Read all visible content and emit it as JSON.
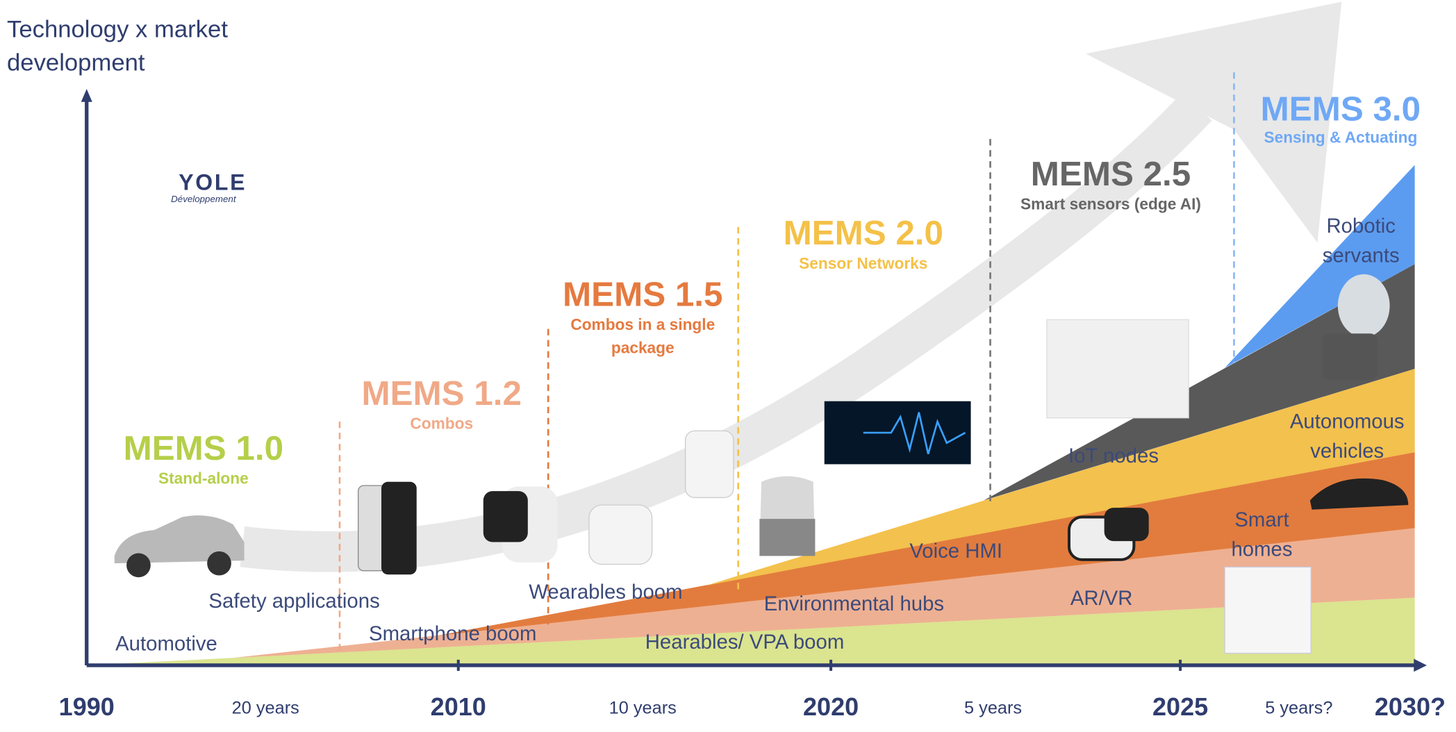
{
  "y_axis_label": [
    "Technology x market",
    "development"
  ],
  "logo": {
    "name": "YOLE",
    "sub": "Développement"
  },
  "eras": [
    {
      "title": "MEMS 1.0",
      "subtitle": [
        "Stand-alone"
      ]
    },
    {
      "title": "MEMS 1.2",
      "subtitle": [
        "Combos"
      ]
    },
    {
      "title": "MEMS 1.5",
      "subtitle": [
        "Combos in a single",
        "package"
      ]
    },
    {
      "title": "MEMS 2.0",
      "subtitle": [
        "Sensor Networks"
      ]
    },
    {
      "title": "MEMS 2.5",
      "subtitle": [
        "Smart sensors (edge AI)"
      ]
    },
    {
      "title": "MEMS 3.0",
      "subtitle": [
        "Sensing & Actuating"
      ]
    }
  ],
  "applications": [
    [
      "Automotive"
    ],
    [
      "Safety applications"
    ],
    [
      "Smartphone boom"
    ],
    [
      "Wearables boom"
    ],
    [
      "Hearables/ VPA boom"
    ],
    [
      "Environmental hubs"
    ],
    [
      "Voice HMI"
    ],
    [
      "IoT nodes"
    ],
    [
      "AR/VR"
    ],
    [
      "Smart",
      "homes"
    ],
    [
      "Autonomous",
      "vehicles"
    ],
    [
      "Robotic",
      "servants"
    ]
  ],
  "timeline": {
    "years": [
      "1990",
      "2010",
      "2020",
      "2025",
      "2030?"
    ],
    "durations": [
      "20 years",
      "10 years",
      "5 years",
      "5 years?"
    ]
  }
}
